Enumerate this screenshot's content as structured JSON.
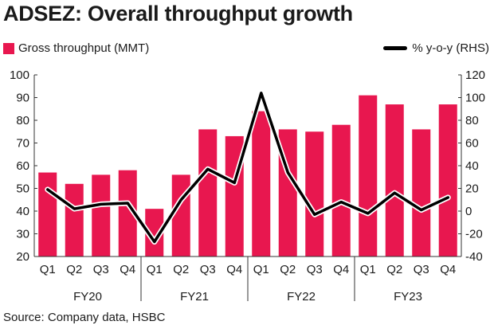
{
  "title": "ADSEZ: Overall throughput growth",
  "source": "Source: Company data, HSBC",
  "chart_data": {
    "type": "bar",
    "title": "ADSEZ: Overall throughput growth",
    "categories": [
      "Q1",
      "Q2",
      "Q3",
      "Q4",
      "Q1",
      "Q2",
      "Q3",
      "Q4",
      "Q1",
      "Q2",
      "Q3",
      "Q4",
      "Q1",
      "Q2",
      "Q3",
      "Q4"
    ],
    "groups": [
      {
        "label": "FY20",
        "span": 4
      },
      {
        "label": "FY21",
        "span": 4
      },
      {
        "label": "FY22",
        "span": 4
      },
      {
        "label": "FY23",
        "span": 4
      }
    ],
    "series": [
      {
        "name": "Gross throughput (MMT)",
        "type": "bar",
        "axis": "left",
        "color": "#e8174f",
        "values": [
          57,
          52,
          56,
          58,
          41,
          56,
          76,
          73,
          84,
          76,
          75,
          78,
          91,
          87,
          76,
          87
        ]
      },
      {
        "name": "% y-o-y (RHS)",
        "type": "line",
        "axis": "right",
        "color": "#000000",
        "values": [
          19,
          2,
          6,
          7,
          -27,
          10,
          37,
          25,
          104,
          34,
          -3,
          8,
          -2,
          16,
          1,
          12
        ]
      }
    ],
    "yaxis_left": {
      "min": 20,
      "max": 100,
      "ticks": [
        20,
        30,
        40,
        50,
        60,
        70,
        80,
        90,
        100
      ]
    },
    "yaxis_right": {
      "min": -40,
      "max": 120,
      "ticks": [
        -40,
        -20,
        0,
        20,
        40,
        60,
        80,
        100,
        120
      ]
    },
    "grid": false,
    "legend_position": "top"
  }
}
